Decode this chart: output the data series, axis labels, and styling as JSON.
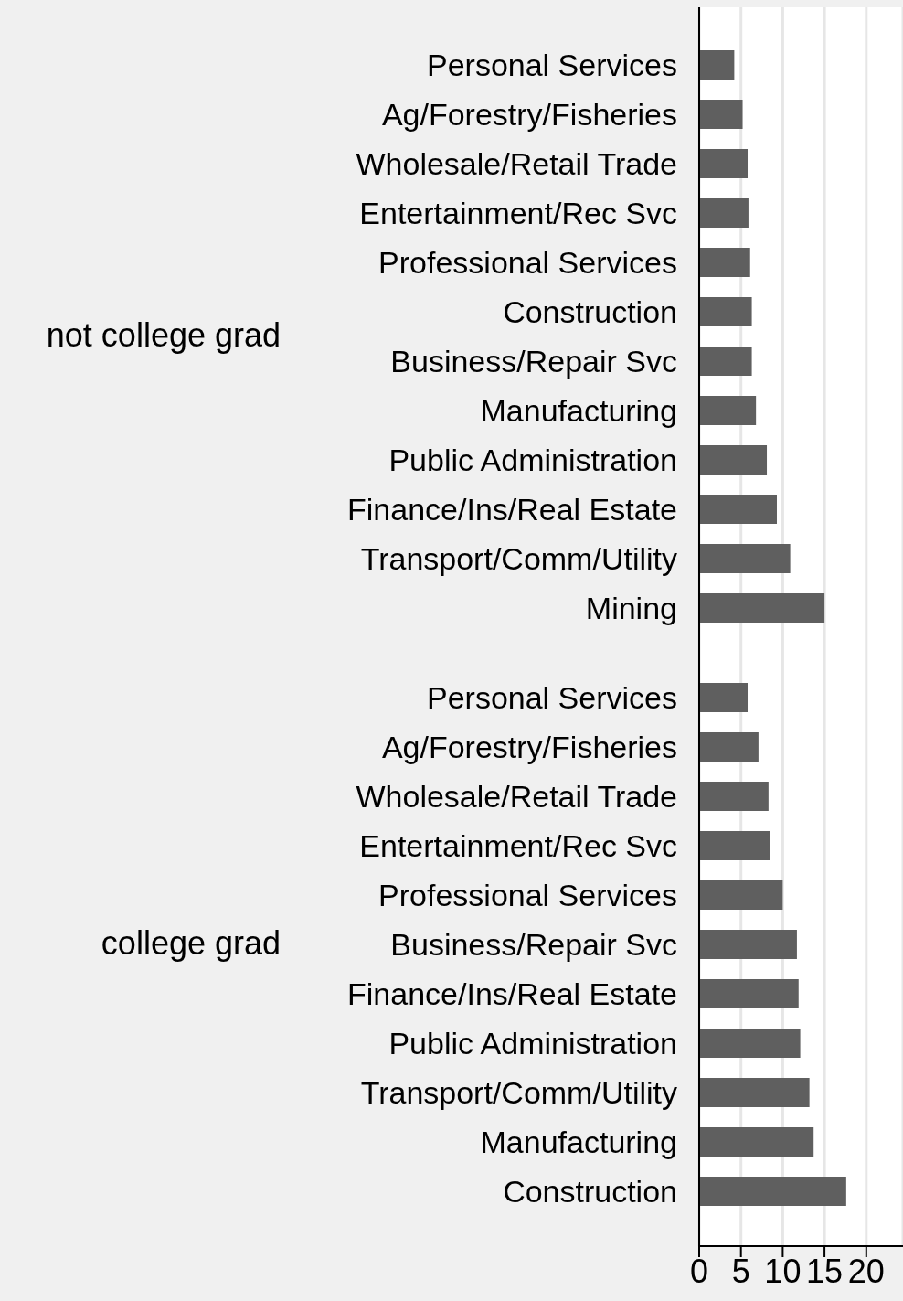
{
  "chart_data": [
    {
      "type": "bar",
      "orientation": "horizontal",
      "ylabel": "not college grad",
      "categories": [
        "Personal Services",
        "Ag/Forestry/Fisheries",
        "Wholesale/Retail Trade",
        "Entertainment/Rec Svc",
        "Professional Services",
        "Construction",
        "Business/Repair Svc",
        "Manufacturing",
        "Public Administration",
        "Finance/Ins/Real Estate",
        "Transport/Comm/Utility",
        "Mining"
      ],
      "values": [
        4.2,
        5.2,
        5.8,
        5.9,
        6.1,
        6.3,
        6.3,
        6.8,
        8.1,
        9.3,
        10.9,
        15.0
      ],
      "color": "#5f5f5f",
      "xlim": [
        0,
        24.4
      ],
      "xticks": [
        0,
        5,
        10,
        15,
        20
      ],
      "grid": "x",
      "tick_labels": "y"
    },
    {
      "type": "bar",
      "orientation": "horizontal",
      "ylabel": "college grad",
      "categories": [
        "Personal Services",
        "Ag/Forestry/Fisheries",
        "Wholesale/Retail Trade",
        "Entertainment/Rec Svc",
        "Professional Services",
        "Business/Repair Svc",
        "Finance/Ins/Real Estate",
        "Public Administration",
        "Transport/Comm/Utility",
        "Manufacturing",
        "Construction"
      ],
      "values": [
        5.8,
        7.1,
        8.3,
        8.5,
        10.0,
        11.7,
        11.9,
        12.1,
        13.2,
        13.7,
        17.6
      ],
      "color": "#5f5f5f",
      "xlim": [
        0,
        24.4
      ],
      "xticks": [
        0,
        5,
        10,
        15,
        20
      ],
      "grid": "x"
    }
  ]
}
